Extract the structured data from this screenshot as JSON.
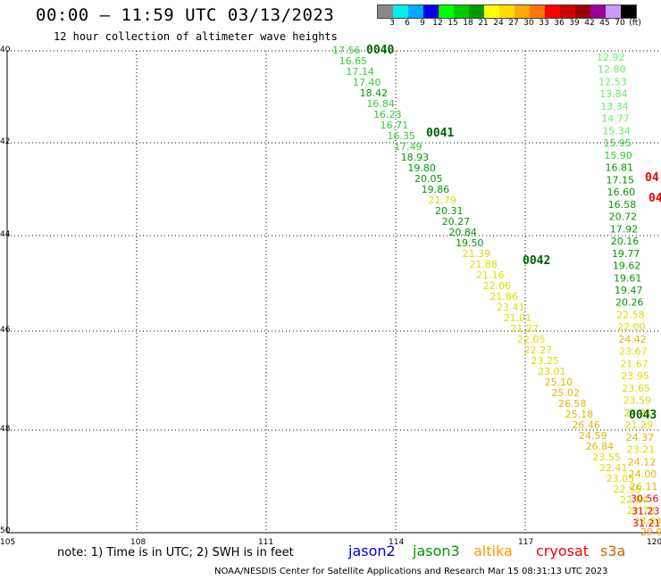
{
  "header": {
    "title": "00:00 – 11:59 UTC 03/13/2023",
    "subtitle": "12 hour collection of altimeter wave heights"
  },
  "legend": {
    "labels": [
      "3",
      "6",
      "9",
      "12",
      "15",
      "18",
      "21",
      "24",
      "27",
      "30",
      "33",
      "36",
      "39",
      "42",
      "45",
      "70",
      "(ft)"
    ],
    "colors": [
      "#888888",
      "#00eeee",
      "#00aaff",
      "#0000ee",
      "#00ff00",
      "#00cc00",
      "#009900",
      "#ffff00",
      "#ffdd00",
      "#ffaa00",
      "#ff7700",
      "#ff0000",
      "#cc0000",
      "#990000",
      "#990099",
      "#cc99ff",
      "#000000"
    ]
  },
  "axes": {
    "lat_labels": [
      "40",
      "42",
      "44",
      "46",
      "48",
      "50"
    ],
    "lon_labels": [
      "105",
      "108",
      "111",
      "114",
      "117",
      "120"
    ]
  },
  "note": "note:  1) Time is in UTC;  2) SWH is in feet",
  "satellites": [
    {
      "name": "jason2",
      "color": "#0000dd"
    },
    {
      "name": "jason3",
      "color": "#009900"
    },
    {
      "name": "altika",
      "color": "#ff9900"
    },
    {
      "name": "cryosat",
      "color": "#ee0000"
    },
    {
      "name": "s3a",
      "color": "#cc6600"
    }
  ],
  "footer": "NOAA/NESDIS Center for Satellite Applications and Research    Mar 15 08:31:13 UTC 2023",
  "track_times": [
    {
      "label": "0040",
      "color": "#006600"
    },
    {
      "label": "0041",
      "color": "#006600"
    },
    {
      "label": "0042",
      "color": "#006600"
    },
    {
      "label": "0043",
      "color": "#006600"
    },
    {
      "label": "04",
      "color": "#ee0000"
    },
    {
      "label": "04",
      "color": "#ee0000"
    }
  ],
  "track_a": [
    {
      "v": "17.56",
      "c": "#33cc33"
    },
    {
      "v": "16.65",
      "c": "#33cc33"
    },
    {
      "v": "17.14",
      "c": "#33cc33"
    },
    {
      "v": "17.40",
      "c": "#33cc33"
    },
    {
      "v": "18.42",
      "c": "#009900"
    },
    {
      "v": "16.84",
      "c": "#33cc33"
    },
    {
      "v": "16.23",
      "c": "#33cc33"
    },
    {
      "v": "16.71",
      "c": "#33cc33"
    },
    {
      "v": "16.35",
      "c": "#33cc33"
    },
    {
      "v": "17.49",
      "c": "#33cc33"
    },
    {
      "v": "18.93",
      "c": "#009900"
    },
    {
      "v": "19.80",
      "c": "#009900"
    },
    {
      "v": "20.05",
      "c": "#009900"
    },
    {
      "v": "19.86",
      "c": "#009900"
    },
    {
      "v": "21.79",
      "c": "#dddd00"
    },
    {
      "v": "20.31",
      "c": "#009900"
    },
    {
      "v": "20.27",
      "c": "#009900"
    },
    {
      "v": "20.84",
      "c": "#009900"
    },
    {
      "v": "19.50",
      "c": "#009900"
    },
    {
      "v": "21.39",
      "c": "#dddd00"
    },
    {
      "v": "21.88",
      "c": "#dddd00"
    },
    {
      "v": "21.16",
      "c": "#dddd00"
    },
    {
      "v": "22.06",
      "c": "#dddd00"
    },
    {
      "v": "21.86",
      "c": "#dddd00"
    },
    {
      "v": "23.41",
      "c": "#dddd00"
    },
    {
      "v": "21.01",
      "c": "#dddd00"
    },
    {
      "v": "21.27",
      "c": "#dddd00"
    },
    {
      "v": "22.05",
      "c": "#dddd00"
    },
    {
      "v": "22.27",
      "c": "#dddd00"
    },
    {
      "v": "23.25",
      "c": "#dddd00"
    },
    {
      "v": "23.01",
      "c": "#dddd00"
    },
    {
      "v": "25.10",
      "c": "#ddbb00"
    },
    {
      "v": "25.02",
      "c": "#ddbb00"
    },
    {
      "v": "26.58",
      "c": "#ddbb00"
    },
    {
      "v": "25.18",
      "c": "#ddbb00"
    },
    {
      "v": "26.46",
      "c": "#ddbb00"
    },
    {
      "v": "24.59",
      "c": "#ddbb00"
    },
    {
      "v": "26.84",
      "c": "#ddbb00"
    },
    {
      "v": "23.55",
      "c": "#dddd00"
    },
    {
      "v": "22.41",
      "c": "#dddd00"
    },
    {
      "v": "23.05",
      "c": "#dddd00"
    },
    {
      "v": "22.56",
      "c": "#dddd00"
    },
    {
      "v": "22.84",
      "c": "#dddd00"
    },
    {
      "v": "22.78",
      "c": "#dddd00"
    },
    {
      "v": "23.84",
      "c": "#dddd00"
    },
    {
      "v": "29.95",
      "c": "#ee9900"
    }
  ],
  "track_b": [
    {
      "v": "12.92",
      "c": "#66ee66"
    },
    {
      "v": "12.80",
      "c": "#66ee66"
    },
    {
      "v": "12.53",
      "c": "#66ee66"
    },
    {
      "v": "13.84",
      "c": "#66ee66"
    },
    {
      "v": "13.34",
      "c": "#66ee66"
    },
    {
      "v": "14.77",
      "c": "#66ee66"
    },
    {
      "v": "15.34",
      "c": "#66ee66"
    },
    {
      "v": "15.95",
      "c": "#33cc33"
    },
    {
      "v": "15.90",
      "c": "#33cc33"
    },
    {
      "v": "16.81",
      "c": "#009900"
    },
    {
      "v": "17.15",
      "c": "#009900"
    },
    {
      "v": "16.60",
      "c": "#009900"
    },
    {
      "v": "16.58",
      "c": "#009900"
    },
    {
      "v": "20.72",
      "c": "#009900"
    },
    {
      "v": "17.92",
      "c": "#009900"
    },
    {
      "v": "20.16",
      "c": "#009900"
    },
    {
      "v": "19.77",
      "c": "#009900"
    },
    {
      "v": "19.62",
      "c": "#009900"
    },
    {
      "v": "19.61",
      "c": "#009900"
    },
    {
      "v": "19.47",
      "c": "#009900"
    },
    {
      "v": "20.26",
      "c": "#009900"
    },
    {
      "v": "22.58",
      "c": "#dddd00"
    },
    {
      "v": "22.00",
      "c": "#dddd00"
    },
    {
      "v": "24.42",
      "c": "#ddbb00"
    },
    {
      "v": "23.67",
      "c": "#dddd00"
    },
    {
      "v": "21.67",
      "c": "#dddd00"
    },
    {
      "v": "23.95",
      "c": "#dddd00"
    },
    {
      "v": "23.65",
      "c": "#dddd00"
    },
    {
      "v": "23.59",
      "c": "#dddd00"
    },
    {
      "v": "24.21",
      "c": "#ddbb00"
    },
    {
      "v": "21.29",
      "c": "#dddd00"
    },
    {
      "v": "24.37",
      "c": "#ddbb00"
    },
    {
      "v": "23.21",
      "c": "#dddd00"
    },
    {
      "v": "24.12",
      "c": "#ddbb00"
    },
    {
      "v": "24.00",
      "c": "#ddbb00"
    },
    {
      "v": "26.11",
      "c": "#ddbb00"
    },
    {
      "v": "30.56",
      "c": "#ee0000"
    },
    {
      "v": "31.23",
      "c": "#ee0000"
    },
    {
      "v": "31.21",
      "c": "#ee0000"
    }
  ]
}
